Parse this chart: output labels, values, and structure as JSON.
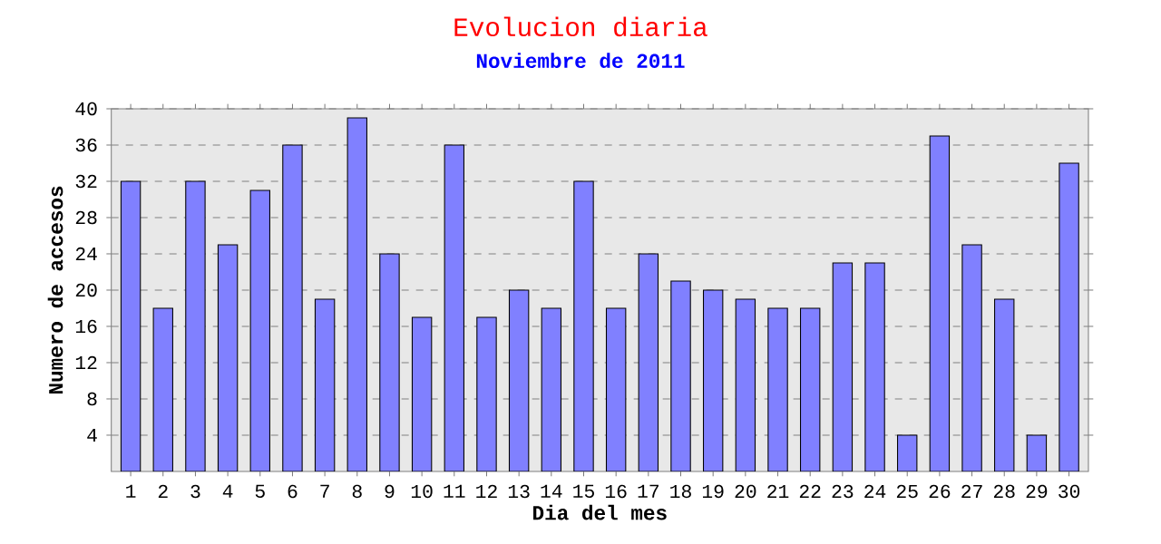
{
  "chart_data": {
    "type": "bar",
    "title": "Evolucion diaria",
    "subtitle": "Noviembre de 2011",
    "xlabel": "Dia del mes",
    "ylabel": "Numero de accesos",
    "categories": [
      "1",
      "2",
      "3",
      "4",
      "5",
      "6",
      "7",
      "8",
      "9",
      "10",
      "11",
      "12",
      "13",
      "14",
      "15",
      "16",
      "17",
      "18",
      "19",
      "20",
      "21",
      "22",
      "23",
      "24",
      "25",
      "26",
      "27",
      "28",
      "29",
      "30"
    ],
    "values": [
      32,
      18,
      32,
      25,
      31,
      36,
      19,
      39,
      24,
      17,
      36,
      17,
      20,
      18,
      32,
      18,
      24,
      21,
      20,
      19,
      18,
      18,
      23,
      23,
      4,
      37,
      25,
      19,
      4,
      34
    ],
    "color": "#8080ff",
    "ylim": [
      0,
      40
    ],
    "yticks": [
      4,
      8,
      12,
      16,
      20,
      24,
      28,
      32,
      36,
      40
    ],
    "grid": "y"
  }
}
